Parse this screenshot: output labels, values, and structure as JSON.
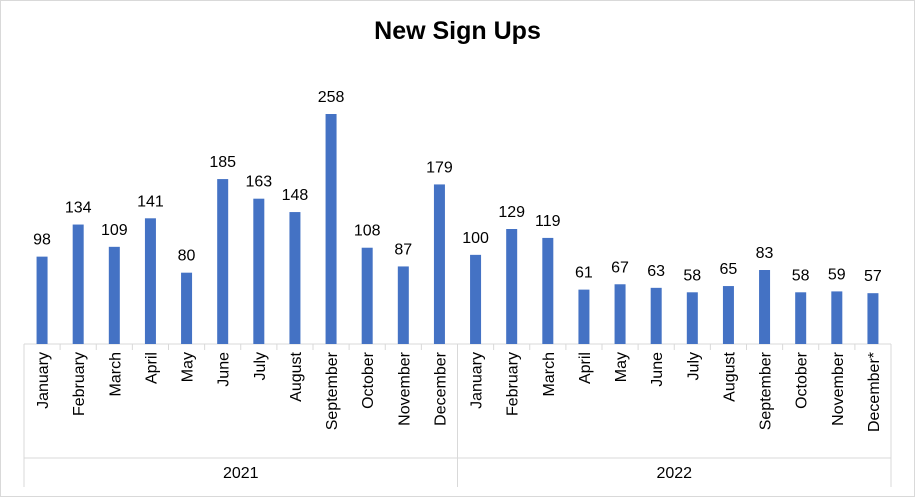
{
  "chart_data": {
    "type": "bar",
    "title": "New Sign Ups",
    "xlabel": "",
    "ylabel": "",
    "categories": [
      {
        "group": "2021",
        "month": "January"
      },
      {
        "group": "2021",
        "month": "February"
      },
      {
        "group": "2021",
        "month": "March"
      },
      {
        "group": "2021",
        "month": "April"
      },
      {
        "group": "2021",
        "month": "May"
      },
      {
        "group": "2021",
        "month": "June"
      },
      {
        "group": "2021",
        "month": "July"
      },
      {
        "group": "2021",
        "month": "August"
      },
      {
        "group": "2021",
        "month": "September"
      },
      {
        "group": "2021",
        "month": "October"
      },
      {
        "group": "2021",
        "month": "November"
      },
      {
        "group": "2021",
        "month": "December"
      },
      {
        "group": "2022",
        "month": "January"
      },
      {
        "group": "2022",
        "month": "February"
      },
      {
        "group": "2022",
        "month": "March"
      },
      {
        "group": "2022",
        "month": "April"
      },
      {
        "group": "2022",
        "month": "May"
      },
      {
        "group": "2022",
        "month": "June"
      },
      {
        "group": "2022",
        "month": "July"
      },
      {
        "group": "2022",
        "month": "August"
      },
      {
        "group": "2022",
        "month": "September"
      },
      {
        "group": "2022",
        "month": "October"
      },
      {
        "group": "2022",
        "month": "November"
      },
      {
        "group": "2022",
        "month": "December*"
      }
    ],
    "groups": [
      "2021",
      "2022"
    ],
    "values": [
      98,
      134,
      109,
      141,
      80,
      185,
      163,
      148,
      258,
      108,
      87,
      179,
      100,
      129,
      119,
      61,
      67,
      63,
      58,
      65,
      83,
      58,
      59,
      57
    ],
    "ylim": [
      0,
      258
    ],
    "grid": false,
    "legend": "none",
    "data_labels": true,
    "bar_color": "#4472c4"
  }
}
